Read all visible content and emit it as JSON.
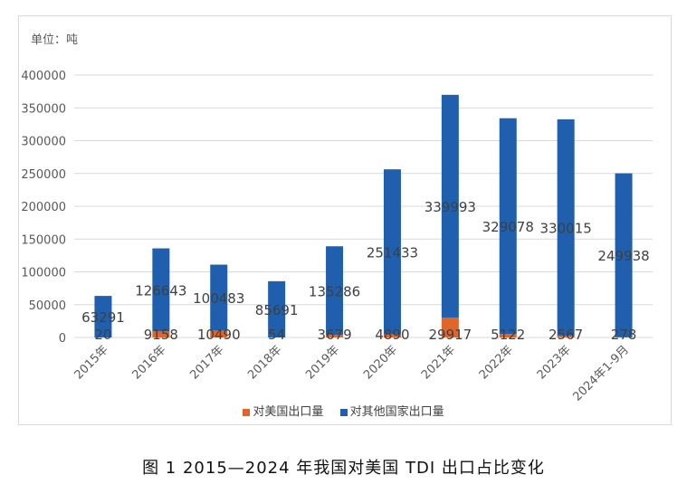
{
  "chart_data": {
    "type": "bar",
    "stacked": true,
    "unit_label": "单位：吨",
    "categories": [
      "2015年",
      "2016年",
      "2017年",
      "2018年",
      "2019年",
      "2020年",
      "2021年",
      "2022年",
      "2023年",
      "2024年1-9月"
    ],
    "series": [
      {
        "name": "对美国出口量",
        "color": "#e0652a",
        "values": [
          20,
          9158,
          10490,
          54,
          3679,
          4890,
          29917,
          5122,
          2567,
          278
        ]
      },
      {
        "name": "对其他国家出口量",
        "color": "#1f5fad",
        "values": [
          63291,
          126643,
          100483,
          85691,
          135286,
          251433,
          339993,
          329078,
          330015,
          249938
        ]
      }
    ],
    "y_ticks": [
      "0",
      "50000",
      "100000",
      "150000",
      "200000",
      "250000",
      "300000",
      "350000",
      "400000"
    ],
    "ylim": [
      0,
      400000
    ],
    "grid": true,
    "legend_position": "bottom"
  },
  "caption": "图 1  2015—2024 年我国对美国 TDI 出口占比变化"
}
